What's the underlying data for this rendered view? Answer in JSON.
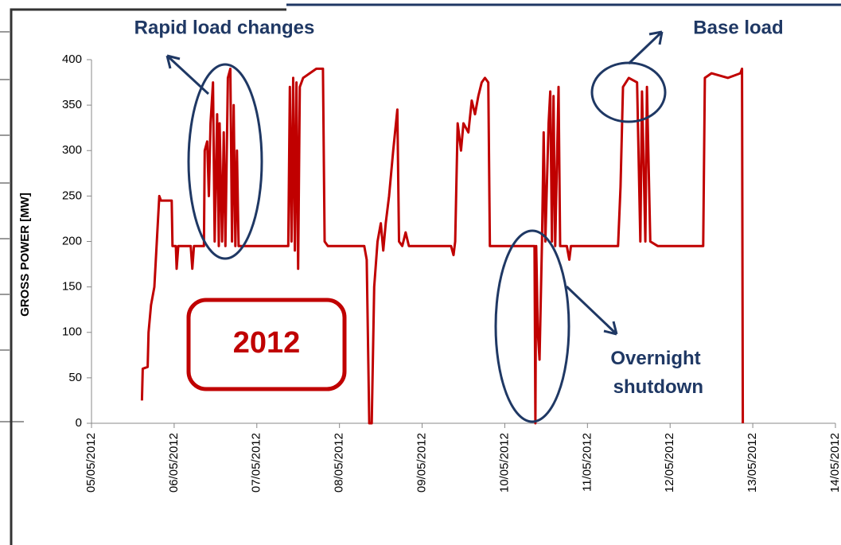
{
  "chart_data": {
    "type": "line",
    "y_label": "GROSS POWER [MW]",
    "annotations": [
      "Rapid load changes",
      "Base load",
      "Overnight shutdown",
      "2012"
    ],
    "xlim": [
      5,
      14
    ],
    "xticks": [
      {
        "value": 5,
        "label": "05/05/2012"
      },
      {
        "value": 6,
        "label": "06/05/2012"
      },
      {
        "value": 7,
        "label": "07/05/2012"
      },
      {
        "value": 8,
        "label": "08/05/2012"
      },
      {
        "value": 9,
        "label": "09/05/2012"
      },
      {
        "value": 10,
        "label": "10/05/2012"
      },
      {
        "value": 11,
        "label": "11/05/2012"
      },
      {
        "value": 12,
        "label": "12/05/2012"
      },
      {
        "value": 13,
        "label": "13/05/2012"
      },
      {
        "value": 14,
        "label": "14/05/2012"
      }
    ],
    "ylim": [
      0,
      400
    ],
    "yticks": [
      0,
      50,
      100,
      150,
      200,
      250,
      300,
      350,
      400
    ],
    "x": [
      5.61,
      5.62,
      5.68,
      5.69,
      5.72,
      5.76,
      5.79,
      5.82,
      5.84,
      5.97,
      5.98,
      6.02,
      6.03,
      6.05,
      6.2,
      6.22,
      6.24,
      6.36,
      6.37,
      6.4,
      6.42,
      6.44,
      6.47,
      6.49,
      6.52,
      6.54,
      6.55,
      6.58,
      6.6,
      6.62,
      6.65,
      6.68,
      6.7,
      6.72,
      6.74,
      6.76,
      6.78,
      7.0,
      7.38,
      7.4,
      7.42,
      7.44,
      7.46,
      7.48,
      7.5,
      7.52,
      7.56,
      7.64,
      7.72,
      7.8,
      7.82,
      7.86,
      8.3,
      8.33,
      8.36,
      8.39,
      8.42,
      8.46,
      8.5,
      8.53,
      8.56,
      8.6,
      8.65,
      8.7,
      8.72,
      8.76,
      8.8,
      8.84,
      9.35,
      9.38,
      9.4,
      9.43,
      9.47,
      9.5,
      9.56,
      9.6,
      9.64,
      9.68,
      9.72,
      9.76,
      9.8,
      9.82,
      10.36,
      10.37,
      10.38,
      10.4,
      10.42,
      10.45,
      10.47,
      10.49,
      10.53,
      10.55,
      10.57,
      10.59,
      10.61,
      10.65,
      10.67,
      10.75,
      10.78,
      10.8,
      11.37,
      11.4,
      11.43,
      11.5,
      11.6,
      11.64,
      11.66,
      11.7,
      11.72,
      11.76,
      11.85,
      12.4,
      12.42,
      12.5,
      12.7,
      12.85,
      12.87,
      12.88
    ],
    "series": [
      {
        "color": "#c00000",
        "values": [
          25,
          60,
          62,
          100,
          130,
          150,
          200,
          250,
          245,
          245,
          195,
          195,
          170,
          195,
          195,
          170,
          195,
          195,
          300,
          310,
          250,
          330,
          375,
          200,
          340,
          195,
          330,
          200,
          320,
          195,
          380,
          390,
          200,
          350,
          195,
          300,
          195,
          195,
          195,
          370,
          200,
          380,
          190,
          375,
          170,
          370,
          380,
          385,
          390,
          390,
          200,
          195,
          195,
          180,
          0,
          0,
          150,
          200,
          220,
          190,
          220,
          250,
          300,
          345,
          200,
          195,
          210,
          195,
          195,
          185,
          200,
          330,
          300,
          330,
          320,
          355,
          340,
          360,
          375,
          380,
          375,
          195,
          195,
          0,
          195,
          100,
          70,
          200,
          320,
          200,
          330,
          365,
          200,
          360,
          195,
          370,
          195,
          195,
          180,
          195,
          195,
          260,
          370,
          380,
          375,
          200,
          365,
          200,
          370,
          200,
          195,
          195,
          380,
          385,
          380,
          385,
          390,
          0
        ]
      }
    ]
  }
}
